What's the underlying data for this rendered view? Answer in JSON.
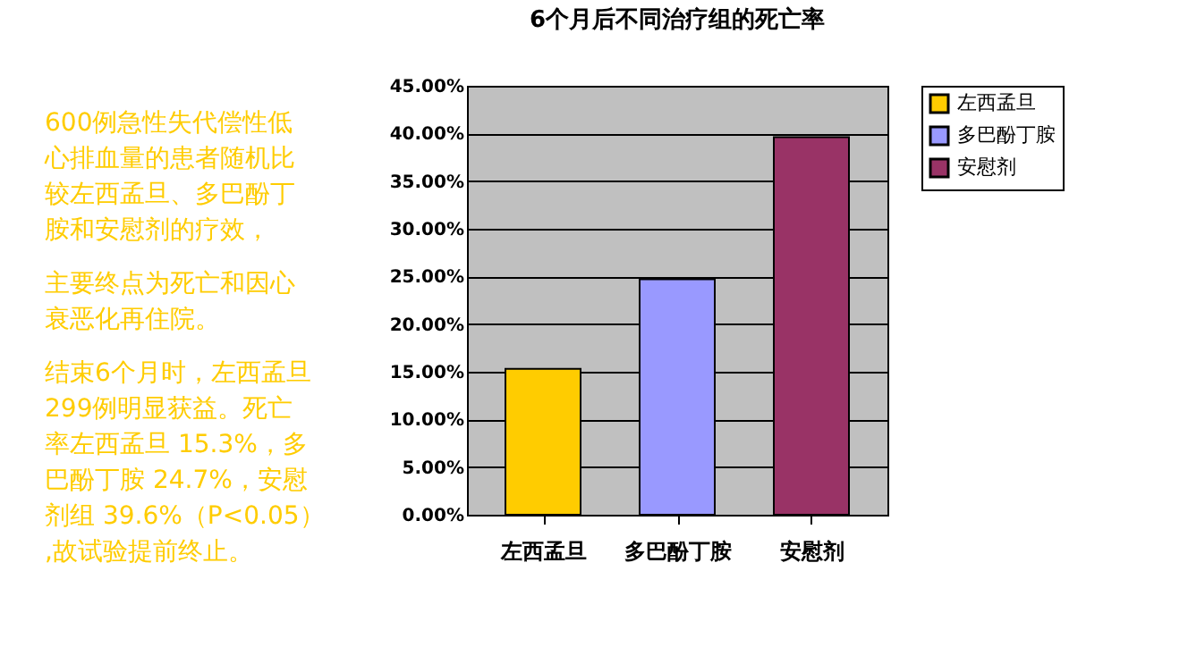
{
  "chart_data": {
    "type": "bar",
    "title": "6个月后不同治疗组的死亡率",
    "categories": [
      "左西孟旦",
      "多巴酚丁胺",
      "安慰剂"
    ],
    "series": [
      {
        "name": "左西孟旦",
        "color": "#ffcc00",
        "values": [
          15.3,
          null,
          null
        ]
      },
      {
        "name": "多巴酚丁胺",
        "color": "#9999ff",
        "values": [
          null,
          24.7,
          null
        ]
      },
      {
        "name": "安慰剂",
        "color": "#993366",
        "values": [
          null,
          null,
          39.6
        ]
      }
    ],
    "ylim": [
      0,
      45
    ],
    "yticks": [
      {
        "value": 0,
        "label": "0.00%"
      },
      {
        "value": 5,
        "label": "5.00%"
      },
      {
        "value": 10,
        "label": "10.00%"
      },
      {
        "value": 15,
        "label": "15.00%"
      },
      {
        "value": 20,
        "label": "20.00%"
      },
      {
        "value": 25,
        "label": "25.00%"
      },
      {
        "value": 30,
        "label": "30.00%"
      },
      {
        "value": 35,
        "label": "35.00%"
      },
      {
        "value": 40,
        "label": "40.00%"
      },
      {
        "value": 45,
        "label": "45.00%"
      }
    ],
    "grid": "y",
    "legend": "right",
    "annotations": [
      "600例急性失代偿性低心排血量的患者随机比较左西孟旦、多巴酚丁胺和安慰剂的疗效，",
      "主要终点为死亡和因心衰恶化再住院。",
      "结束6个月时，左西孟旦299例明显获益。死亡率左西孟旦 15.3%，多巴酚丁胺 24.7%，安慰剂组 39.6%（P<0.05）,故试验提前终止。"
    ]
  }
}
